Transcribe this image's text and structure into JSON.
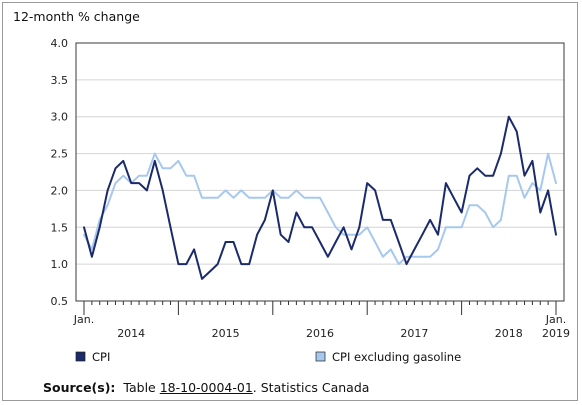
{
  "chart_data": {
    "type": "line",
    "unit_label": "12-month % change",
    "ylim": [
      0.5,
      4.0
    ],
    "y_ticks": [
      "4.0",
      "3.5",
      "3.0",
      "2.5",
      "2.0",
      "1.5",
      "1.0",
      "0.5"
    ],
    "x_start_label": [
      "Jan."
    ],
    "x_end_label": [
      "Jan.",
      "2019"
    ],
    "years": [
      "2014",
      "2015",
      "2016",
      "2017",
      "2018"
    ],
    "grid": "horizontal",
    "legend_position": "bottom",
    "series": [
      {
        "name": "CPI",
        "color": "#1b2a6b",
        "values": [
          1.5,
          1.1,
          1.5,
          2.0,
          2.3,
          2.4,
          2.1,
          2.1,
          2.0,
          2.4,
          2.0,
          1.5,
          1.0,
          1.0,
          1.2,
          0.8,
          0.9,
          1.0,
          1.3,
          1.3,
          1.0,
          1.0,
          1.4,
          1.6,
          2.0,
          1.4,
          1.3,
          1.7,
          1.5,
          1.5,
          1.3,
          1.1,
          1.3,
          1.5,
          1.2,
          1.5,
          2.1,
          2.0,
          1.6,
          1.6,
          1.3,
          1.0,
          1.2,
          1.4,
          1.6,
          1.4,
          2.1,
          1.9,
          1.7,
          2.2,
          2.3,
          2.2,
          2.2,
          2.5,
          3.0,
          2.8,
          2.2,
          2.4,
          1.7,
          2.0,
          1.4
        ]
      },
      {
        "name": "CPI excluding gasoline",
        "color": "#a7c8ee",
        "values": [
          1.4,
          1.2,
          1.6,
          1.8,
          2.1,
          2.2,
          2.1,
          2.2,
          2.2,
          2.5,
          2.3,
          2.3,
          2.4,
          2.2,
          2.2,
          1.9,
          1.9,
          1.9,
          2.0,
          1.9,
          2.0,
          1.9,
          1.9,
          1.9,
          2.0,
          1.9,
          1.9,
          2.0,
          1.9,
          1.9,
          1.9,
          1.7,
          1.5,
          1.4,
          1.4,
          1.4,
          1.5,
          1.3,
          1.1,
          1.2,
          1.0,
          1.1,
          1.1,
          1.1,
          1.1,
          1.2,
          1.5,
          1.5,
          1.5,
          1.8,
          1.8,
          1.7,
          1.5,
          1.6,
          2.2,
          2.2,
          1.9,
          2.1,
          2.0,
          2.5,
          2.1
        ]
      }
    ]
  },
  "source": {
    "label": "Source(s):",
    "pre": "Table ",
    "link": "18-10-0004-01",
    "post": ".  Statistics Canada"
  }
}
